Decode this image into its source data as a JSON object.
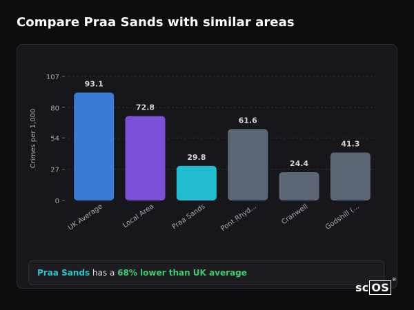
{
  "header": {
    "title": "Compare Praa Sands with similar areas"
  },
  "summary": {
    "place": "Praa Sands",
    "middle": " has a ",
    "difference": "68% lower than UK average"
  },
  "logo": {
    "text_a": "sc",
    "text_b": "OS",
    "mark": "®"
  },
  "colors": {
    "uk": "#3a7bd5",
    "local": "#7b4fd6",
    "target": "#22bcd1",
    "other": "#5c6676"
  },
  "chart_data": {
    "type": "bar",
    "categories": [
      "UK Average",
      "Local Area",
      "Praa Sands",
      "Pont Rhyd...",
      "Cranwell",
      "Godshill (..."
    ],
    "values": [
      93.1,
      72.8,
      29.8,
      61.6,
      24.4,
      41.3
    ],
    "value_labels": [
      "93.1",
      "72.8",
      "29.8",
      "61.6",
      "24.4",
      "41.3"
    ],
    "bar_colors": [
      "#3a7bd5",
      "#7b4fd6",
      "#22bcd1",
      "#5c6676",
      "#5c6676",
      "#5c6676"
    ],
    "ylabel": "Crimes per 1,000",
    "xlabel": "",
    "yticks": [
      0,
      27,
      54,
      80,
      107
    ],
    "ylim": [
      0,
      107
    ],
    "grid": true
  }
}
